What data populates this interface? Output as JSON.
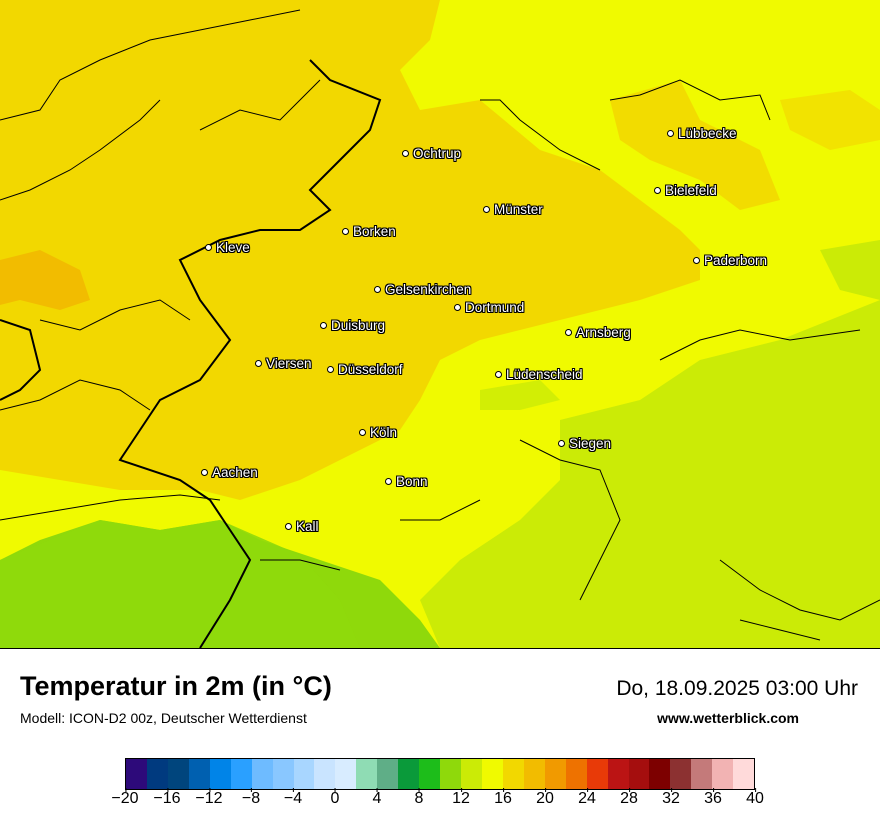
{
  "map": {
    "cities": [
      {
        "name": "Lübbecke"
      },
      {
        "name": "Ochtrup"
      },
      {
        "name": "Bielefeld"
      },
      {
        "name": "Münster"
      },
      {
        "name": "Borken"
      },
      {
        "name": "Kleve"
      },
      {
        "name": "Paderborn"
      },
      {
        "name": "Gelsenkirchen"
      },
      {
        "name": "Dortmund"
      },
      {
        "name": "Duisburg"
      },
      {
        "name": "Arnsberg"
      },
      {
        "name": "Viersen"
      },
      {
        "name": "Düsseldorf"
      },
      {
        "name": "Lüdenscheid"
      },
      {
        "name": "Köln"
      },
      {
        "name": "Siegen"
      },
      {
        "name": "Aachen"
      },
      {
        "name": "Bonn"
      },
      {
        "name": "Kall"
      }
    ]
  },
  "footer": {
    "title": "Temperatur in 2m (in °C)",
    "subtitle": "Modell: ICON-D2 00z, Deutscher Wetterdienst",
    "datetime": "Do, 18.09.2025 03:00 Uhr",
    "website": "www.wetterblick.com"
  },
  "legend": {
    "colors": [
      "#2d0a7a",
      "#003a7f",
      "#00457d",
      "#0060b0",
      "#0084e8",
      "#2aa0ff",
      "#6ebbff",
      "#89c7ff",
      "#a8d6ff",
      "#c9e4ff",
      "#d8ecff",
      "#8fdcb4",
      "#5fae87",
      "#0a9a3a",
      "#1dbd1a",
      "#8fd90b",
      "#cbeb06",
      "#f0fa00",
      "#f2d800",
      "#f2bc00",
      "#f19a00",
      "#ee7200",
      "#e83a08",
      "#bb1414",
      "#a50e0e",
      "#7d0000",
      "#8c3131",
      "#c47a7a",
      "#f2b3b3",
      "#ffdada"
    ],
    "ticks": [
      "−20",
      "−16",
      "−12",
      "−8",
      "−4",
      "0",
      "4",
      "8",
      "12",
      "16",
      "20",
      "24",
      "28",
      "32",
      "36",
      "40"
    ]
  }
}
